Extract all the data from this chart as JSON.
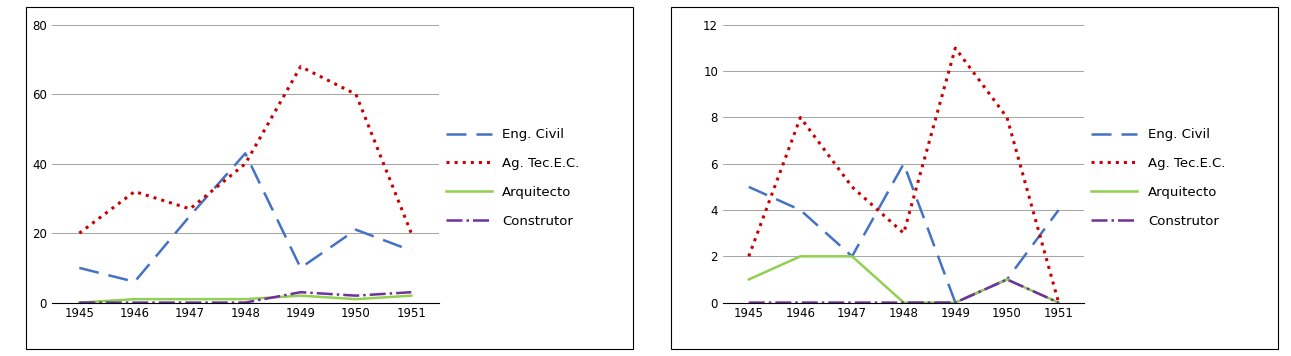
{
  "years": [
    1945,
    1946,
    1947,
    1948,
    1949,
    1950,
    1951
  ],
  "chart1": {
    "eng_civil": [
      10,
      6,
      25,
      43,
      10,
      21,
      15
    ],
    "ag_tec": [
      20,
      32,
      27,
      40,
      68,
      60,
      20
    ],
    "arquitecto": [
      0,
      1,
      1,
      1,
      2,
      1,
      2
    ],
    "construtor": [
      0,
      0,
      0,
      0,
      3,
      2,
      3
    ],
    "ylim": [
      0,
      80
    ],
    "yticks": [
      0,
      20,
      40,
      60,
      80
    ]
  },
  "chart2": {
    "eng_civil": [
      5,
      4,
      2,
      6,
      0,
      1,
      4
    ],
    "ag_tec": [
      2,
      8,
      5,
      3,
      11,
      8,
      0
    ],
    "arquitecto": [
      1,
      2,
      2,
      0,
      0,
      1,
      0
    ],
    "construtor": [
      0,
      0,
      0,
      0,
      0,
      1,
      0
    ],
    "ylim": [
      0,
      12
    ],
    "yticks": [
      0,
      2,
      4,
      6,
      8,
      10,
      12
    ]
  },
  "colors": {
    "eng_civil": "#4472C4",
    "ag_tec": "#CC0000",
    "arquitecto": "#92D050",
    "construtor": "#7030A0"
  },
  "legend_labels": [
    "Eng. Civil",
    "Ag. Tec.E.C.",
    "Arquitecto",
    "Construtor"
  ]
}
